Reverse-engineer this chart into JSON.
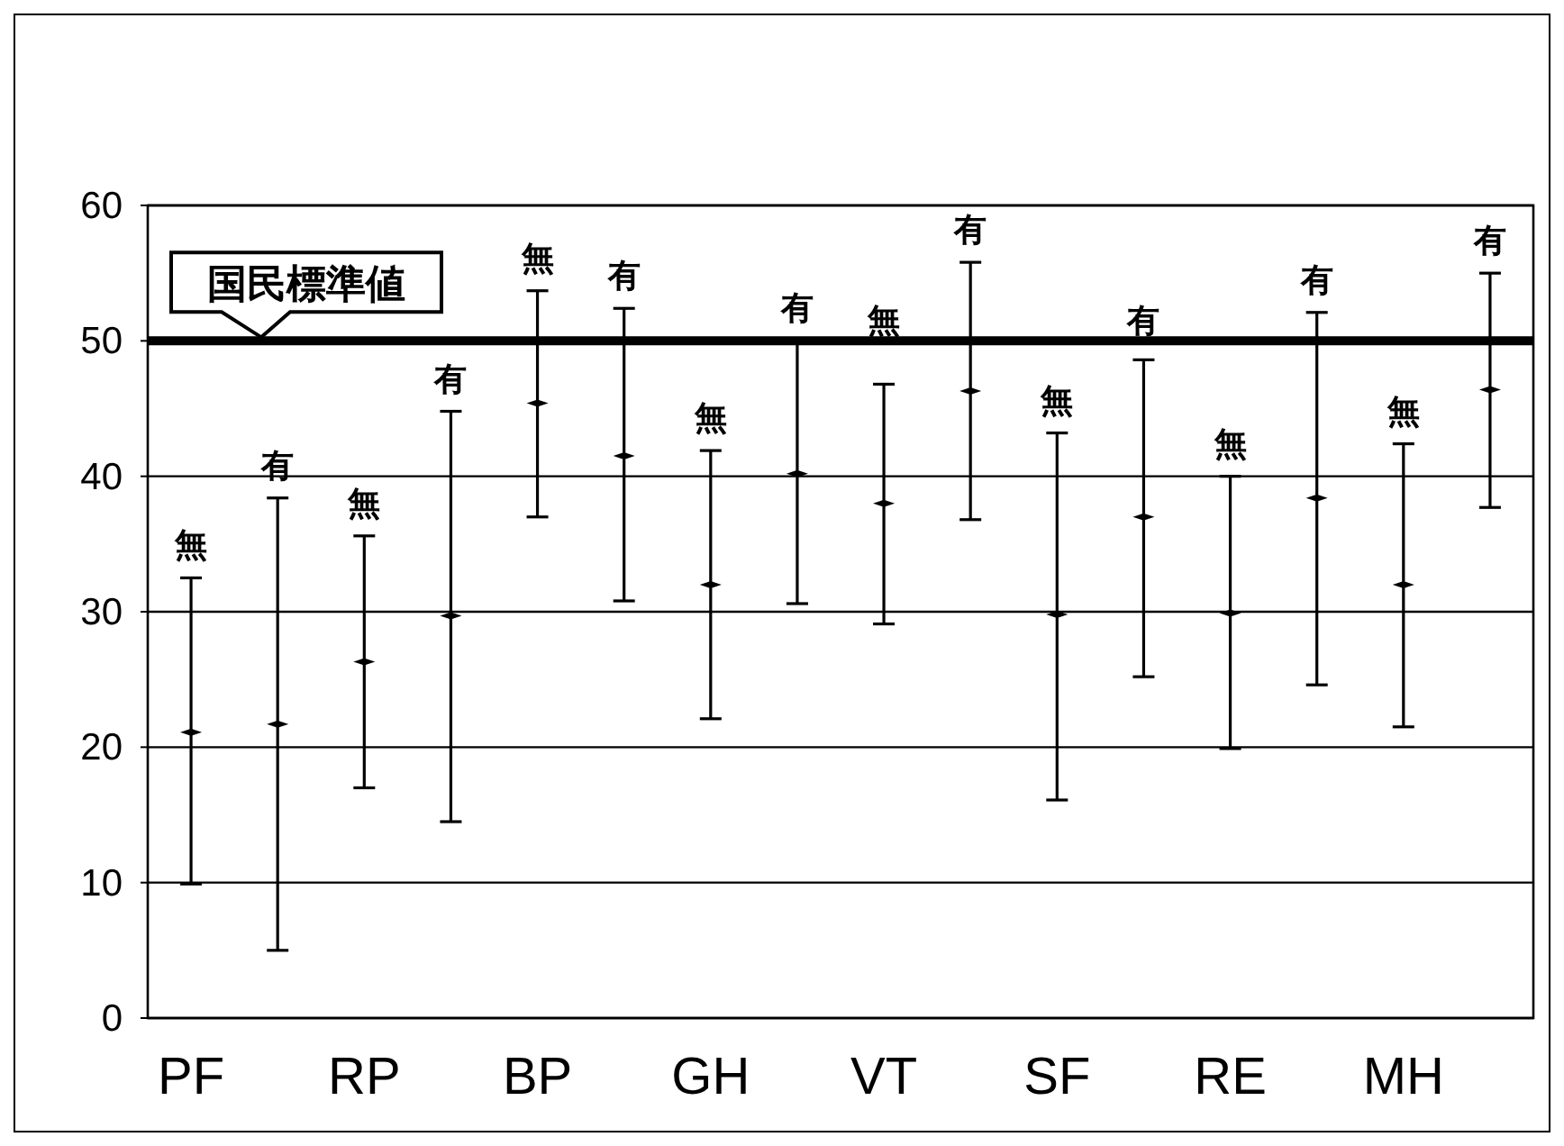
{
  "chart_data": {
    "type": "scatter",
    "categories": [
      "PF",
      null,
      "RP",
      null,
      "BP",
      null,
      "GH",
      null,
      "VT",
      null,
      "SF",
      null,
      "RE",
      null,
      "MH",
      null
    ],
    "series": [
      {
        "name": "無",
        "color": "#000000",
        "values": [
          21.1,
          null,
          26.3,
          null,
          45.4,
          null,
          32.0,
          null,
          38.0,
          null,
          29.8,
          null,
          29.9,
          null,
          32.0,
          null
        ],
        "errors": [
          [
            9.9,
            32.5
          ],
          null,
          [
            17.0,
            35.6
          ],
          null,
          [
            37.0,
            53.7
          ],
          null,
          [
            22.1,
            41.9
          ],
          null,
          [
            29.1,
            46.8
          ],
          null,
          [
            16.1,
            43.2
          ],
          null,
          [
            19.9,
            40.0
          ],
          null,
          [
            21.5,
            42.4
          ],
          null
        ]
      },
      {
        "name": "有",
        "color": "#000000",
        "values": [
          null,
          21.7,
          null,
          29.7,
          null,
          41.5,
          null,
          40.2,
          null,
          46.3,
          null,
          37.0,
          null,
          38.4,
          null,
          46.4
        ],
        "errors": [
          null,
          [
            5.0,
            38.4
          ],
          null,
          [
            14.5,
            44.8
          ],
          null,
          [
            30.8,
            52.4
          ],
          null,
          [
            30.6,
            50.0
          ],
          null,
          [
            36.8,
            55.8
          ],
          null,
          [
            25.2,
            48.6
          ],
          null,
          [
            24.6,
            52.1
          ],
          null,
          [
            37.7,
            55.0
          ]
        ]
      }
    ],
    "ylim": [
      0,
      60
    ],
    "yticks": [
      0,
      10,
      20,
      30,
      40,
      50,
      60
    ],
    "grid": "y",
    "ref_lines": [
      {
        "axis": "y",
        "value": 50,
        "label": "国民標準値",
        "color": "#000000"
      }
    ]
  }
}
